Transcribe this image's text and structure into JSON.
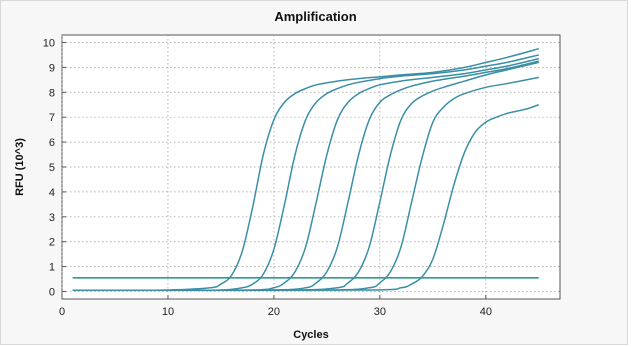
{
  "chart_data": {
    "type": "line",
    "title": "Amplification",
    "xlabel": "Cycles",
    "ylabel": "RFU (10^3)",
    "xlim": [
      0,
      47
    ],
    "ylim": [
      -0.3,
      10.3
    ],
    "xticks": [
      0,
      10,
      20,
      30,
      40
    ],
    "yticks": [
      0,
      1,
      2,
      3,
      4,
      5,
      6,
      7,
      8,
      9,
      10
    ],
    "grid": true,
    "line_color": "#3a8fa6",
    "baseline_color": "#2a9d8f",
    "baseline": [
      {
        "x": [
          1,
          45
        ],
        "y": [
          0.55,
          0.55
        ]
      }
    ],
    "series": [
      {
        "x": [
          1,
          5,
          10,
          14,
          15,
          16,
          17,
          18,
          19,
          20,
          21,
          22,
          23,
          24,
          26,
          28,
          30,
          32,
          35,
          38,
          40,
          42,
          45
        ],
        "y": [
          0.05,
          0.05,
          0.06,
          0.15,
          0.3,
          0.65,
          1.6,
          3.4,
          5.5,
          6.9,
          7.6,
          7.95,
          8.15,
          8.3,
          8.45,
          8.55,
          8.62,
          8.7,
          8.8,
          9.0,
          9.2,
          9.4,
          9.75
        ]
      },
      {
        "x": [
          1,
          10,
          15,
          17,
          18,
          19,
          20,
          21,
          22,
          23,
          24,
          25,
          26,
          27,
          28,
          30,
          32,
          35,
          38,
          40,
          42,
          45
        ],
        "y": [
          0.05,
          0.05,
          0.06,
          0.15,
          0.3,
          0.7,
          1.7,
          3.5,
          5.5,
          6.9,
          7.6,
          7.95,
          8.15,
          8.3,
          8.4,
          8.55,
          8.65,
          8.75,
          8.9,
          9.05,
          9.2,
          9.5
        ]
      },
      {
        "x": [
          1,
          10,
          18,
          20,
          21,
          22,
          23,
          24,
          25,
          26,
          27,
          28,
          29,
          30,
          32,
          35,
          38,
          40,
          42,
          45
        ],
        "y": [
          0.05,
          0.05,
          0.06,
          0.15,
          0.35,
          0.8,
          1.8,
          3.6,
          5.5,
          6.9,
          7.6,
          7.95,
          8.15,
          8.3,
          8.45,
          8.6,
          8.75,
          8.9,
          9.05,
          9.35
        ]
      },
      {
        "x": [
          1,
          10,
          20,
          23,
          24,
          25,
          26,
          27,
          28,
          29,
          30,
          31,
          32,
          33,
          35,
          38,
          40,
          42,
          45
        ],
        "y": [
          0.05,
          0.05,
          0.06,
          0.15,
          0.35,
          0.8,
          1.8,
          3.6,
          5.5,
          6.9,
          7.6,
          7.9,
          8.1,
          8.25,
          8.45,
          8.65,
          8.8,
          8.95,
          9.25
        ]
      },
      {
        "x": [
          1,
          10,
          22,
          26,
          27,
          28,
          29,
          30,
          31,
          32,
          33,
          34,
          35,
          36,
          38,
          40,
          42,
          45
        ],
        "y": [
          0.05,
          0.05,
          0.06,
          0.15,
          0.35,
          0.8,
          1.8,
          3.6,
          5.5,
          6.9,
          7.55,
          7.85,
          8.05,
          8.2,
          8.45,
          8.7,
          8.9,
          9.2
        ]
      },
      {
        "x": [
          1,
          10,
          25,
          29,
          30,
          31,
          32,
          33,
          34,
          35,
          36,
          37,
          38,
          40,
          42,
          45
        ],
        "y": [
          0.05,
          0.05,
          0.06,
          0.15,
          0.35,
          0.8,
          1.8,
          3.6,
          5.4,
          6.8,
          7.4,
          7.75,
          7.95,
          8.2,
          8.35,
          8.6
        ]
      },
      {
        "x": [
          1,
          10,
          29,
          32,
          33,
          34,
          35,
          36,
          37,
          38,
          39,
          40,
          41,
          42,
          43,
          44,
          45
        ],
        "y": [
          0.05,
          0.05,
          0.06,
          0.15,
          0.3,
          0.6,
          1.3,
          2.7,
          4.3,
          5.6,
          6.4,
          6.8,
          7.0,
          7.15,
          7.25,
          7.35,
          7.5
        ]
      }
    ]
  }
}
